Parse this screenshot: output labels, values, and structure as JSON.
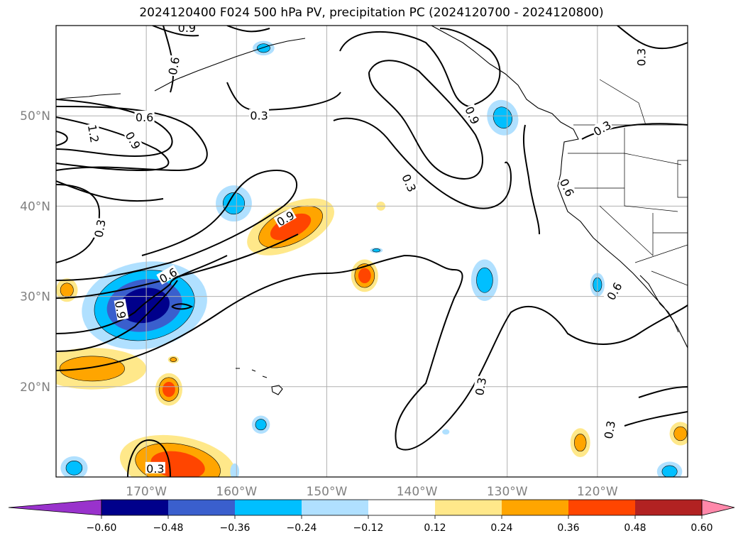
{
  "title": "2024120400 F024 500 hPa PV, precipitation PC (2024120700 - 2024120800)",
  "map": {
    "lon_range": [
      -180,
      -110
    ],
    "lat_range": [
      10,
      60
    ],
    "lat_gridlines": [
      {
        "lat": 50,
        "label": "50°N"
      },
      {
        "lat": 40,
        "label": "40°N"
      },
      {
        "lat": 30,
        "label": "30°N"
      },
      {
        "lat": 20,
        "label": "20°N"
      }
    ],
    "lon_gridlines": [
      {
        "lon": -170,
        "label": "170°W"
      },
      {
        "lon": -160,
        "label": "160°W"
      },
      {
        "lon": -150,
        "label": "150°W"
      },
      {
        "lon": -140,
        "label": "140°W"
      },
      {
        "lon": -130,
        "label": "130°W"
      },
      {
        "lon": -120,
        "label": "120°W"
      }
    ],
    "pv_contour_labels": [
      {
        "text": "0.9",
        "lon": -165.5,
        "lat": 59.6,
        "rot": 0
      },
      {
        "text": "0.6",
        "lon": -166.8,
        "lat": 55.5,
        "rot": -80
      },
      {
        "text": "0.6",
        "lon": -170.2,
        "lat": 49.7,
        "rot": 0
      },
      {
        "text": "1.2",
        "lon": -176.0,
        "lat": 48.0,
        "rot": 80
      },
      {
        "text": "0.9",
        "lon": -171.6,
        "lat": 47.2,
        "rot": 60
      },
      {
        "text": "0.3",
        "lon": -157.5,
        "lat": 49.9,
        "rot": 0
      },
      {
        "text": "0.9",
        "lon": -134.0,
        "lat": 50.0,
        "rot": 65
      },
      {
        "text": "0.3",
        "lon": -119.4,
        "lat": 48.5,
        "rot": -30
      },
      {
        "text": "0.3",
        "lon": -115.0,
        "lat": 56.5,
        "rot": -90
      },
      {
        "text": "0.3",
        "lon": -141.0,
        "lat": 42.5,
        "rot": 65
      },
      {
        "text": "0.6",
        "lon": -123.5,
        "lat": 42.0,
        "rot": 65
      },
      {
        "text": "0.3",
        "lon": -175.0,
        "lat": 37.5,
        "rot": -80
      },
      {
        "text": "0.9",
        "lon": -154.5,
        "lat": 38.5,
        "rot": -30
      },
      {
        "text": "0.6",
        "lon": -167.5,
        "lat": 32.2,
        "rot": -30
      },
      {
        "text": "0.9",
        "lon": -173.0,
        "lat": 28.5,
        "rot": 80
      },
      {
        "text": "0.6",
        "lon": -118.0,
        "lat": 30.5,
        "rot": -60
      },
      {
        "text": "0.3",
        "lon": -132.8,
        "lat": 20.0,
        "rot": -80
      },
      {
        "text": "0.3",
        "lon": -118.5,
        "lat": 15.2,
        "rot": -80
      },
      {
        "text": "0.3",
        "lon": -169.0,
        "lat": 10.8,
        "rot": 0
      }
    ],
    "precip_anomalies": [
      {
        "lon": -170.2,
        "lat": 29.0,
        "rx": 7.0,
        "ry": 4.8,
        "value": -0.55,
        "rot": -10
      },
      {
        "lon": -154.0,
        "lat": 37.7,
        "rx": 5.2,
        "ry": 2.5,
        "value": 0.45,
        "rot": -25
      },
      {
        "lon": -145.8,
        "lat": 32.3,
        "rx": 1.5,
        "ry": 1.8,
        "value": 0.4,
        "rot": 0
      },
      {
        "lon": -176.0,
        "lat": 22.0,
        "rx": 6.0,
        "ry": 2.3,
        "value": 0.32,
        "rot": 0
      },
      {
        "lon": -167.5,
        "lat": 19.7,
        "rx": 1.5,
        "ry": 1.8,
        "value": 0.38,
        "rot": 0
      },
      {
        "lon": -166.5,
        "lat": 11.3,
        "rx": 6.5,
        "ry": 3.2,
        "value": 0.36,
        "rot": 10
      },
      {
        "lon": -178.8,
        "lat": 30.7,
        "rx": 1.2,
        "ry": 1.3,
        "value": 0.26,
        "rot": 0
      },
      {
        "lon": -121.9,
        "lat": 13.8,
        "rx": 1.1,
        "ry": 1.6,
        "value": 0.3,
        "rot": 0
      },
      {
        "lon": -110.8,
        "lat": 14.8,
        "rx": 1.2,
        "ry": 1.3,
        "value": 0.3,
        "rot": 0
      },
      {
        "lon": -144.0,
        "lat": 40.0,
        "rx": 0.5,
        "ry": 0.5,
        "value": 0.2,
        "rot": 0
      },
      {
        "lon": -167.0,
        "lat": 23.0,
        "rx": 0.6,
        "ry": 0.4,
        "value": 0.25,
        "rot": 0
      },
      {
        "lon": -160.3,
        "lat": 40.3,
        "rx": 2.0,
        "ry": 2.0,
        "value": -0.3,
        "rot": 0
      },
      {
        "lon": -132.5,
        "lat": 31.8,
        "rx": 1.5,
        "ry": 2.3,
        "value": -0.28,
        "rot": 0
      },
      {
        "lon": -130.5,
        "lat": 49.8,
        "rx": 1.7,
        "ry": 2.0,
        "value": -0.28,
        "rot": -20
      },
      {
        "lon": -120.0,
        "lat": 31.3,
        "rx": 0.8,
        "ry": 1.3,
        "value": -0.26,
        "rot": 0
      },
      {
        "lon": -157.0,
        "lat": 57.5,
        "rx": 1.2,
        "ry": 0.8,
        "value": -0.26,
        "rot": 0
      },
      {
        "lon": -157.3,
        "lat": 15.8,
        "rx": 1.0,
        "ry": 1.0,
        "value": -0.26,
        "rot": 0
      },
      {
        "lon": -178.0,
        "lat": 11.0,
        "rx": 1.5,
        "ry": 1.3,
        "value": -0.26,
        "rot": 0
      },
      {
        "lon": -112.0,
        "lat": 10.6,
        "rx": 1.4,
        "ry": 1.1,
        "value": -0.26,
        "rot": 0
      },
      {
        "lon": -144.5,
        "lat": 35.1,
        "rx": 0.7,
        "ry": 0.3,
        "value": -0.26,
        "rot": 0
      },
      {
        "lon": -160.2,
        "lat": 10.6,
        "rx": 0.5,
        "ry": 0.9,
        "value": -0.22,
        "rot": 0
      },
      {
        "lon": -136.8,
        "lat": 15.0,
        "rx": 0.4,
        "ry": 0.3,
        "value": -0.2,
        "rot": 0
      }
    ]
  },
  "colorbar": {
    "levels": [
      -0.6,
      -0.48,
      -0.36,
      -0.24,
      -0.12,
      0.12,
      0.24,
      0.36,
      0.48,
      0.6
    ],
    "colors": [
      "#9932cc",
      "#00008b",
      "#3a5fcd",
      "#00bfff",
      "#b0e0ff",
      "#ffffff",
      "#ffe88a",
      "#ffa500",
      "#ff4500",
      "#b22222",
      "#ff88aa"
    ],
    "tick_labels": [
      "−0.60",
      "−0.48",
      "−0.36",
      "−0.24",
      "−0.12",
      "0.12",
      "0.24",
      "0.36",
      "0.48",
      "0.60"
    ]
  }
}
